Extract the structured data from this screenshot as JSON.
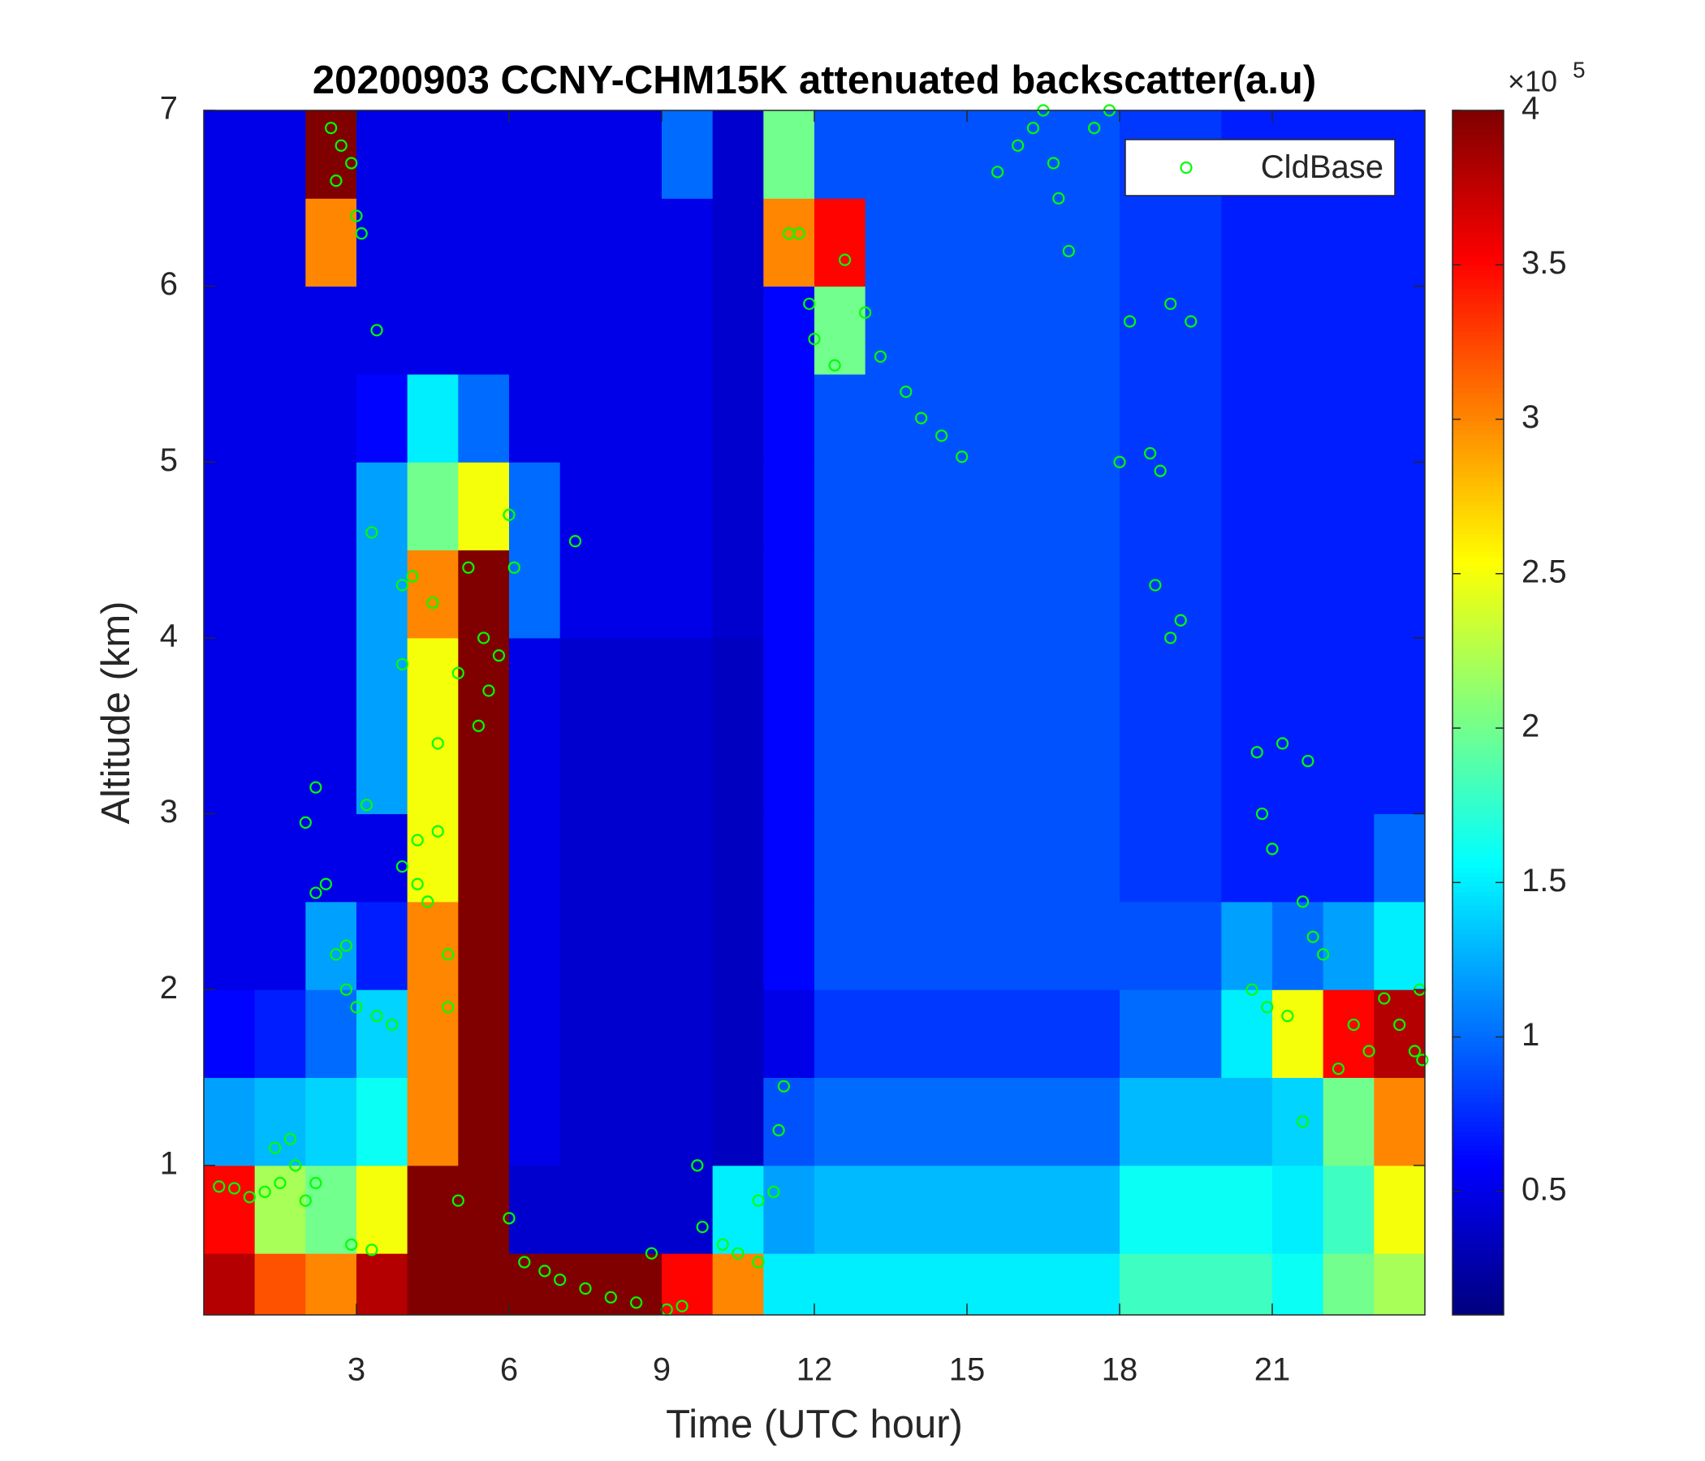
{
  "chart_data": {
    "type": "heatmap",
    "title": "20200903 CCNY-CHM15K attenuated backscatter(a.u)",
    "xlabel": "Time (UTC hour)",
    "ylabel": "Altitude (km)",
    "xlim": [
      0,
      24
    ],
    "ylim": [
      0.15,
      7
    ],
    "xticks": [
      3,
      6,
      9,
      12,
      15,
      18,
      21
    ],
    "yticks": [
      1,
      2,
      3,
      4,
      5,
      6,
      7
    ],
    "colormap": "jet",
    "clim": [
      0.1,
      4
    ],
    "cticks": [
      0.5,
      1,
      1.5,
      2,
      2.5,
      3,
      3.5,
      4
    ],
    "color_multiplier": {
      "base": "×10",
      "exponent": "5"
    },
    "x_bins": [
      0,
      1,
      2,
      3,
      4,
      5,
      6,
      7,
      8,
      9,
      10,
      11,
      12,
      13,
      14,
      15,
      16,
      17,
      18,
      19,
      20,
      21,
      22,
      23,
      24
    ],
    "y_bins": [
      0.15,
      0.5,
      1,
      1.5,
      2,
      2.5,
      3,
      3.5,
      4,
      4.5,
      5,
      5.5,
      6,
      6.5,
      7
    ],
    "z": [
      [
        3.8,
        3.2,
        3.0,
        3.8,
        4,
        4,
        4,
        4,
        4,
        3.5,
        3.0,
        1.5,
        1.5,
        1.5,
        1.5,
        1.5,
        1.5,
        1.5,
        1.8,
        1.8,
        1.8,
        1.6,
        2.0,
        2.2
      ],
      [
        3.5,
        2.2,
        2.0,
        2.5,
        4,
        4,
        0.4,
        0.4,
        0.4,
        0.4,
        1.5,
        1.2,
        1.3,
        1.3,
        1.3,
        1.3,
        1.3,
        1.3,
        1.6,
        1.6,
        1.6,
        1.5,
        1.8,
        2.5
      ],
      [
        1.2,
        1.3,
        1.4,
        1.6,
        3,
        4,
        0.5,
        0.4,
        0.4,
        0.4,
        0.35,
        0.9,
        1.0,
        1.0,
        1.0,
        1.0,
        1.0,
        1.0,
        1.3,
        1.3,
        1.3,
        1.4,
        2.0,
        3.0
      ],
      [
        0.6,
        0.7,
        1.0,
        1.4,
        3,
        4,
        0.5,
        0.4,
        0.4,
        0.4,
        0.35,
        0.5,
        0.8,
        0.8,
        0.8,
        0.8,
        0.8,
        0.8,
        1.0,
        1.0,
        1.5,
        2.5,
        3.5,
        3.8
      ],
      [
        0.5,
        0.5,
        1.2,
        0.7,
        3,
        4,
        0.5,
        0.4,
        0.4,
        0.4,
        0.35,
        0.6,
        0.9,
        0.9,
        0.9,
        0.9,
        0.9,
        0.9,
        0.9,
        0.9,
        1.2,
        1.0,
        1.2,
        1.5
      ],
      [
        0.5,
        0.5,
        0.5,
        0.5,
        2.5,
        4,
        0.5,
        0.4,
        0.4,
        0.4,
        0.35,
        0.6,
        0.9,
        0.9,
        0.9,
        0.9,
        0.9,
        0.9,
        0.8,
        0.8,
        0.7,
        0.7,
        0.7,
        1.0
      ],
      [
        0.5,
        0.5,
        0.5,
        1.2,
        2.5,
        4,
        0.5,
        0.4,
        0.4,
        0.4,
        0.35,
        0.6,
        0.9,
        0.9,
        0.9,
        0.9,
        0.9,
        0.9,
        0.8,
        0.8,
        0.7,
        0.7,
        0.7,
        0.7
      ],
      [
        0.5,
        0.5,
        0.5,
        1.2,
        2.5,
        4,
        0.5,
        0.4,
        0.4,
        0.4,
        0.35,
        0.6,
        0.9,
        0.9,
        0.9,
        0.9,
        0.9,
        0.9,
        0.8,
        0.8,
        0.7,
        0.7,
        0.7,
        0.7
      ],
      [
        0.5,
        0.5,
        0.5,
        1.2,
        3,
        4,
        1,
        0.5,
        0.5,
        0.5,
        0.4,
        0.6,
        0.9,
        0.9,
        0.9,
        0.9,
        0.9,
        0.9,
        0.8,
        0.8,
        0.7,
        0.7,
        0.7,
        0.7
      ],
      [
        0.5,
        0.5,
        0.5,
        1.2,
        2,
        2.5,
        1,
        0.5,
        0.5,
        0.5,
        0.4,
        0.6,
        0.9,
        0.9,
        0.9,
        0.9,
        0.9,
        0.9,
        0.8,
        0.8,
        0.7,
        0.7,
        0.7,
        0.7
      ],
      [
        0.5,
        0.5,
        0.5,
        0.6,
        1.5,
        1,
        0.5,
        0.5,
        0.5,
        0.5,
        0.4,
        0.6,
        0.9,
        0.9,
        0.9,
        0.9,
        0.9,
        0.9,
        0.8,
        0.8,
        0.7,
        0.7,
        0.7,
        0.7
      ],
      [
        0.5,
        0.5,
        0.5,
        0.5,
        0.5,
        0.5,
        0.5,
        0.5,
        0.5,
        0.5,
        0.4,
        0.6,
        2,
        0.9,
        0.9,
        0.9,
        0.9,
        0.9,
        0.8,
        0.8,
        0.7,
        0.7,
        0.7,
        0.7
      ],
      [
        0.5,
        0.5,
        3,
        0.5,
        0.5,
        0.5,
        0.5,
        0.5,
        0.5,
        0.5,
        0.4,
        3,
        3.5,
        0.9,
        0.9,
        0.9,
        0.9,
        0.9,
        0.8,
        0.8,
        0.7,
        0.7,
        0.7,
        0.7
      ],
      [
        0.5,
        0.5,
        4,
        0.5,
        0.5,
        0.5,
        0.5,
        0.5,
        0.5,
        1,
        0.4,
        2,
        0.9,
        0.9,
        0.9,
        0.9,
        0.9,
        0.9,
        0.8,
        0.8,
        0.7,
        0.7,
        0.7,
        0.7
      ]
    ],
    "series": [
      {
        "name": "CldBase",
        "type": "scatter",
        "marker": "circle",
        "color": "#00ff00",
        "x": [
          0.3,
          0.6,
          0.9,
          1.2,
          1.5,
          1.4,
          1.7,
          1.8,
          2.0,
          2.2,
          2.0,
          2.2,
          2.2,
          2.4,
          2.6,
          2.8,
          2.8,
          3.0,
          3.4,
          3.7,
          2.5,
          2.6,
          2.7,
          2.9,
          3.0,
          3.1,
          3.4,
          3.3,
          2.9,
          3.3,
          3.2,
          3.9,
          4.1,
          3.9,
          3.9,
          4.2,
          4.4,
          4.2,
          4.6,
          4.5,
          4.6,
          4.8,
          4.8,
          5.0,
          5.0,
          5.2,
          5.4,
          5.5,
          5.6,
          5.8,
          6.0,
          6.1,
          6.0,
          6.3,
          6.7,
          7.0,
          7.3,
          7.5,
          8.0,
          8.5,
          8.8,
          9.1,
          9.4,
          9.7,
          9.8,
          10.2,
          10.5,
          10.9,
          10.9,
          11.2,
          11.3,
          11.4,
          11.5,
          11.7,
          11.9,
          12.0,
          12.4,
          12.6,
          13.0,
          13.3,
          13.8,
          14.1,
          14.5,
          14.9,
          15.6,
          16.0,
          16.3,
          16.5,
          16.7,
          16.8,
          17.0,
          17.5,
          17.8,
          18.0,
          18.2,
          18.6,
          18.8,
          19.0,
          18.7,
          19.0,
          19.2,
          19.4,
          20.7,
          20.8,
          21.0,
          21.2,
          20.6,
          20.9,
          21.3,
          21.6,
          21.7,
          21.8,
          22.0,
          21.6,
          22.3,
          22.6,
          22.9,
          23.2,
          23.5,
          23.8,
          23.95,
          23.9
        ],
        "values": [
          0.88,
          0.87,
          0.82,
          0.85,
          0.9,
          1.1,
          1.15,
          1.0,
          0.8,
          0.9,
          2.95,
          3.15,
          2.55,
          2.6,
          2.2,
          2.25,
          2.0,
          1.9,
          1.85,
          1.8,
          6.9,
          6.6,
          6.8,
          6.7,
          6.4,
          6.3,
          5.75,
          4.6,
          0.55,
          0.52,
          3.05,
          4.3,
          4.35,
          3.85,
          2.7,
          2.6,
          2.5,
          2.85,
          2.9,
          4.2,
          3.4,
          2.2,
          1.9,
          0.8,
          3.8,
          4.4,
          3.5,
          4.0,
          3.7,
          3.9,
          4.7,
          4.4,
          0.7,
          0.45,
          0.4,
          0.35,
          4.55,
          0.3,
          0.25,
          0.22,
          0.5,
          0.18,
          0.2,
          1.0,
          0.65,
          0.55,
          0.5,
          0.45,
          0.8,
          0.85,
          1.2,
          1.45,
          6.3,
          6.3,
          5.9,
          5.7,
          5.55,
          6.15,
          5.85,
          5.6,
          5.4,
          5.25,
          5.15,
          5.03,
          6.65,
          6.8,
          6.9,
          7.0,
          6.7,
          6.5,
          6.2,
          6.9,
          7.0,
          5.0,
          5.8,
          5.05,
          4.95,
          5.9,
          4.3,
          4.0,
          4.1,
          5.8,
          3.35,
          3.0,
          2.8,
          3.4,
          2.0,
          1.9,
          1.85,
          2.5,
          3.3,
          2.3,
          2.2,
          1.25,
          1.55,
          1.8,
          1.65,
          1.95,
          1.8,
          1.65,
          1.6,
          2.0
        ]
      }
    ],
    "legend": "northeast"
  }
}
